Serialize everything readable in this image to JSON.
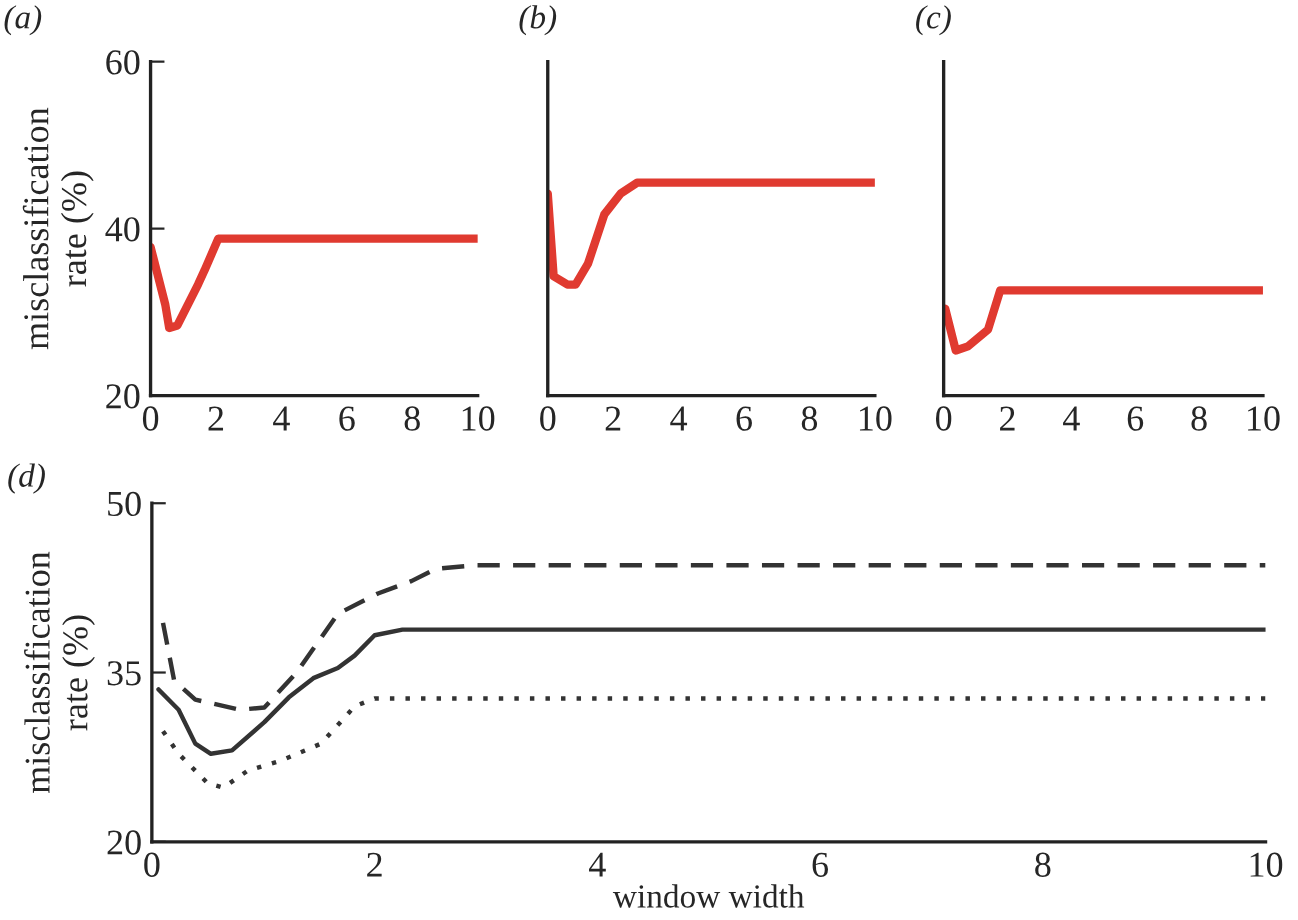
{
  "chart_data": [
    {
      "type": "line",
      "title": "(a)",
      "ylabel": "misclassification\nrate (%)",
      "xlim": [
        0,
        10
      ],
      "xticks": [
        0,
        2,
        4,
        6,
        8,
        10
      ],
      "ylim": [
        20,
        60
      ],
      "yticks": [
        20,
        40,
        60
      ],
      "grid": false,
      "legend": false,
      "series": [
        {
          "color": "#e03a30",
          "line_style": "solid",
          "x": [
            0,
            0.45,
            0.57,
            0.82,
            1.45,
            1.65,
            2.07,
            10
          ],
          "values": [
            37.8,
            30.9,
            28.1,
            28.4,
            33.3,
            35,
            38.8,
            38.8
          ]
        }
      ]
    },
    {
      "type": "line",
      "title": "(b)",
      "xlim": [
        0,
        10
      ],
      "xticks": [
        0,
        2,
        4,
        6,
        8,
        10
      ],
      "ylim": [
        20,
        60
      ],
      "yticks": [
        20,
        40,
        60
      ],
      "tick_labels": "x",
      "grid": false,
      "legend": false,
      "series": [
        {
          "color": "#e03a30",
          "line_style": "solid",
          "x": [
            0,
            0.18,
            0.6,
            0.85,
            1.23,
            1.73,
            2.23,
            2.73,
            10
          ],
          "values": [
            44.2,
            34.3,
            33.3,
            33.3,
            35.8,
            41.7,
            44.2,
            45.5,
            45.5
          ]
        }
      ]
    },
    {
      "type": "line",
      "title": "(c)",
      "xlim": [
        0,
        10
      ],
      "xticks": [
        0,
        2,
        4,
        6,
        8,
        10
      ],
      "ylim": [
        20,
        60
      ],
      "yticks": [
        20,
        40,
        60
      ],
      "tick_labels": "x",
      "grid": false,
      "legend": false,
      "series": [
        {
          "color": "#e03a30",
          "line_style": "solid",
          "x": [
            0.05,
            0.38,
            0.76,
            1.39,
            1.77,
            10
          ],
          "values": [
            30.4,
            25.4,
            25.9,
            27.9,
            32.6,
            32.6
          ]
        }
      ]
    },
    {
      "type": "line",
      "title": "(d)",
      "xlabel": "window width",
      "ylabel": "misclassification\nrate (%)",
      "xlim": [
        0,
        10
      ],
      "xticks": [
        0,
        2,
        4,
        6,
        8,
        10
      ],
      "ylim": [
        20,
        50
      ],
      "yticks": [
        20,
        35,
        50
      ],
      "grid": false,
      "legend": false,
      "series": [
        {
          "color": "#333333",
          "line_style": "solid",
          "x": [
            0.06,
            0.24,
            0.39,
            0.53,
            0.72,
            1.01,
            1.23,
            1.45,
            1.67,
            1.82,
            2.0,
            2.25,
            10
          ],
          "values": [
            33.5,
            31.7,
            28.7,
            27.8,
            28.1,
            30.6,
            32.8,
            34.5,
            35.4,
            36.5,
            38.3,
            38.8,
            38.8
          ]
        },
        {
          "color": "#333333",
          "line_style": "dashed",
          "x": [
            0.1,
            0.2,
            0.39,
            0.79,
            1.01,
            1.3,
            1.67,
            2.03,
            2.33,
            2.55,
            2.91,
            10
          ],
          "values": [
            39.4,
            34.3,
            32.6,
            31.7,
            31.9,
            35,
            40.2,
            42,
            43.1,
            44.2,
            44.5,
            44.5
          ]
        },
        {
          "color": "#333333",
          "line_style": "dotted",
          "x": [
            0.1,
            0.24,
            0.5,
            0.64,
            0.86,
            1.16,
            1.52,
            1.82,
            2.0,
            10
          ],
          "values": [
            29.8,
            27.8,
            25.2,
            24.8,
            26.3,
            27.2,
            28.7,
            32,
            32.7,
            32.7
          ]
        }
      ]
    }
  ]
}
